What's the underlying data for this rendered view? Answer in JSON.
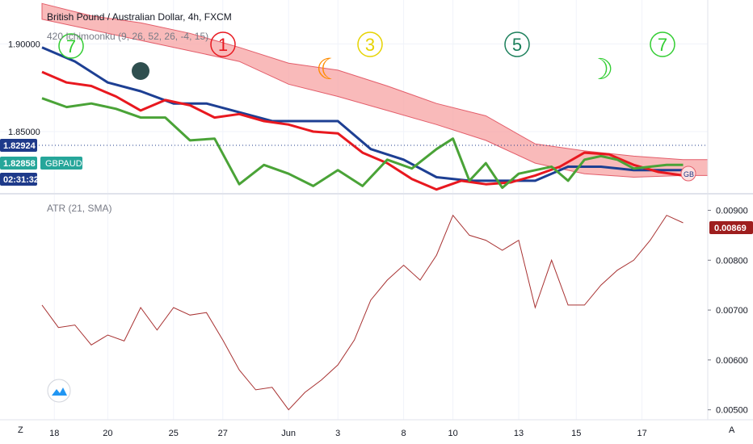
{
  "header": {
    "symbol_title": "British Pound / Australian Dollar, 4h, FXCM",
    "indicator_label": "420 Ichimoonku (9, 26, 52, 26, -4, 15)"
  },
  "price_badges": {
    "last_price": "1.82924",
    "indicator_price": "1.82858",
    "symbol": "GBPAUD",
    "countdown": "02:31:32"
  },
  "wave_labels": [
    "7",
    "1",
    "3",
    "5",
    "7"
  ],
  "atr_panel": {
    "label": "ATR (21, SMA)",
    "current_value": "0.00869"
  },
  "bottom_bar": {
    "left_button": "Z",
    "right_button": "A"
  },
  "colors": {
    "kijun": "#1d3f93",
    "tenkan": "#e8181f",
    "chikou": "#4aa337",
    "cloud": "#f7a3a3",
    "atr_line": "#a83232",
    "last_badge": "#1e3a8a",
    "ind_badge": "#26a69a",
    "atr_badge": "#9e1e1e"
  },
  "chart_data": [
    {
      "type": "line",
      "title": "British Pound / Australian Dollar, 4h, FXCM",
      "ylim": [
        1.8155,
        1.925
      ],
      "price_ticks": [
        "1.90000",
        "1.85000"
      ],
      "x_tick_labels": [
        "18",
        "20",
        "25",
        "27",
        "Jun",
        "3",
        "8",
        "10",
        "13",
        "15",
        "17"
      ],
      "series": [
        {
          "name": "Kijun",
          "x": [
            0,
            4,
            8,
            12,
            16,
            20,
            24,
            28,
            32,
            36,
            40,
            44,
            48,
            52,
            56,
            60,
            64,
            68,
            72,
            76,
            78
          ],
          "y": [
            1.898,
            1.89,
            1.878,
            1.873,
            1.866,
            1.866,
            1.861,
            1.856,
            1.856,
            1.856,
            1.84,
            1.834,
            1.824,
            1.822,
            1.822,
            1.822,
            1.83,
            1.83,
            1.828,
            1.828,
            1.828
          ]
        },
        {
          "name": "Tenkan",
          "x": [
            0,
            3,
            6,
            9,
            12,
            15,
            18,
            21,
            24,
            27,
            30,
            33,
            36,
            39,
            42,
            45,
            48,
            51,
            54,
            57,
            60,
            63,
            66,
            69,
            72,
            75,
            78
          ],
          "y": [
            1.884,
            1.878,
            1.876,
            1.87,
            1.862,
            1.868,
            1.865,
            1.858,
            1.86,
            1.856,
            1.854,
            1.85,
            1.849,
            1.838,
            1.832,
            1.823,
            1.817,
            1.822,
            1.82,
            1.821,
            1.825,
            1.83,
            1.838,
            1.837,
            1.831,
            1.827,
            1.825
          ]
        },
        {
          "name": "Chikou",
          "x": [
            0,
            3,
            6,
            9,
            12,
            15,
            18,
            21,
            24,
            27,
            30,
            33,
            36,
            39,
            42,
            45,
            48,
            50,
            52,
            54,
            56,
            58,
            60,
            62,
            64,
            66,
            68,
            70,
            72,
            74,
            76,
            78
          ],
          "y": [
            1.869,
            1.864,
            1.866,
            1.863,
            1.858,
            1.858,
            1.845,
            1.846,
            1.82,
            1.831,
            1.826,
            1.819,
            1.828,
            1.819,
            1.834,
            1.829,
            1.84,
            1.846,
            1.822,
            1.832,
            1.818,
            1.826,
            1.828,
            1.83,
            1.822,
            1.834,
            1.836,
            1.834,
            1.829,
            1.83,
            1.831,
            1.831
          ]
        }
      ],
      "cloud": {
        "x": [
          0,
          6,
          12,
          18,
          24,
          30,
          36,
          42,
          48,
          54,
          60,
          66,
          72,
          78,
          81
        ],
        "upper": [
          1.923,
          1.916,
          1.912,
          1.906,
          1.898,
          1.889,
          1.885,
          1.876,
          1.866,
          1.859,
          1.843,
          1.839,
          1.836,
          1.834,
          1.834
        ],
        "lower": [
          1.914,
          1.908,
          1.902,
          1.896,
          1.89,
          1.877,
          1.87,
          1.862,
          1.854,
          1.845,
          1.832,
          1.826,
          1.824,
          1.825,
          1.825
        ]
      }
    },
    {
      "type": "line",
      "title": "ATR (21, SMA)",
      "ylim": [
        0.0048,
        0.0093
      ],
      "y_tick_labels": [
        "0.00900",
        "0.00800",
        "0.00700",
        "0.00600",
        "0.00500"
      ],
      "series": [
        {
          "name": "ATR (21, SMA)",
          "x": [
            0,
            2,
            4,
            6,
            8,
            10,
            12,
            14,
            16,
            18,
            20,
            22,
            24,
            26,
            28,
            30,
            32,
            34,
            36,
            38,
            40,
            42,
            44,
            46,
            48,
            50,
            52,
            54,
            56,
            58,
            60,
            62,
            64,
            66,
            68,
            70,
            72,
            74,
            76,
            78
          ],
          "y": [
            0.0071,
            0.00665,
            0.0067,
            0.0063,
            0.0065,
            0.00638,
            0.00705,
            0.0066,
            0.00705,
            0.0069,
            0.00695,
            0.0064,
            0.0058,
            0.0054,
            0.00545,
            0.005,
            0.00535,
            0.0056,
            0.0059,
            0.0064,
            0.0072,
            0.0076,
            0.0079,
            0.0076,
            0.0081,
            0.0089,
            0.0085,
            0.0084,
            0.0082,
            0.0084,
            0.00705,
            0.008,
            0.0071,
            0.0071,
            0.0075,
            0.0078,
            0.008,
            0.0084,
            0.0089,
            0.00875
          ]
        }
      ]
    }
  ]
}
